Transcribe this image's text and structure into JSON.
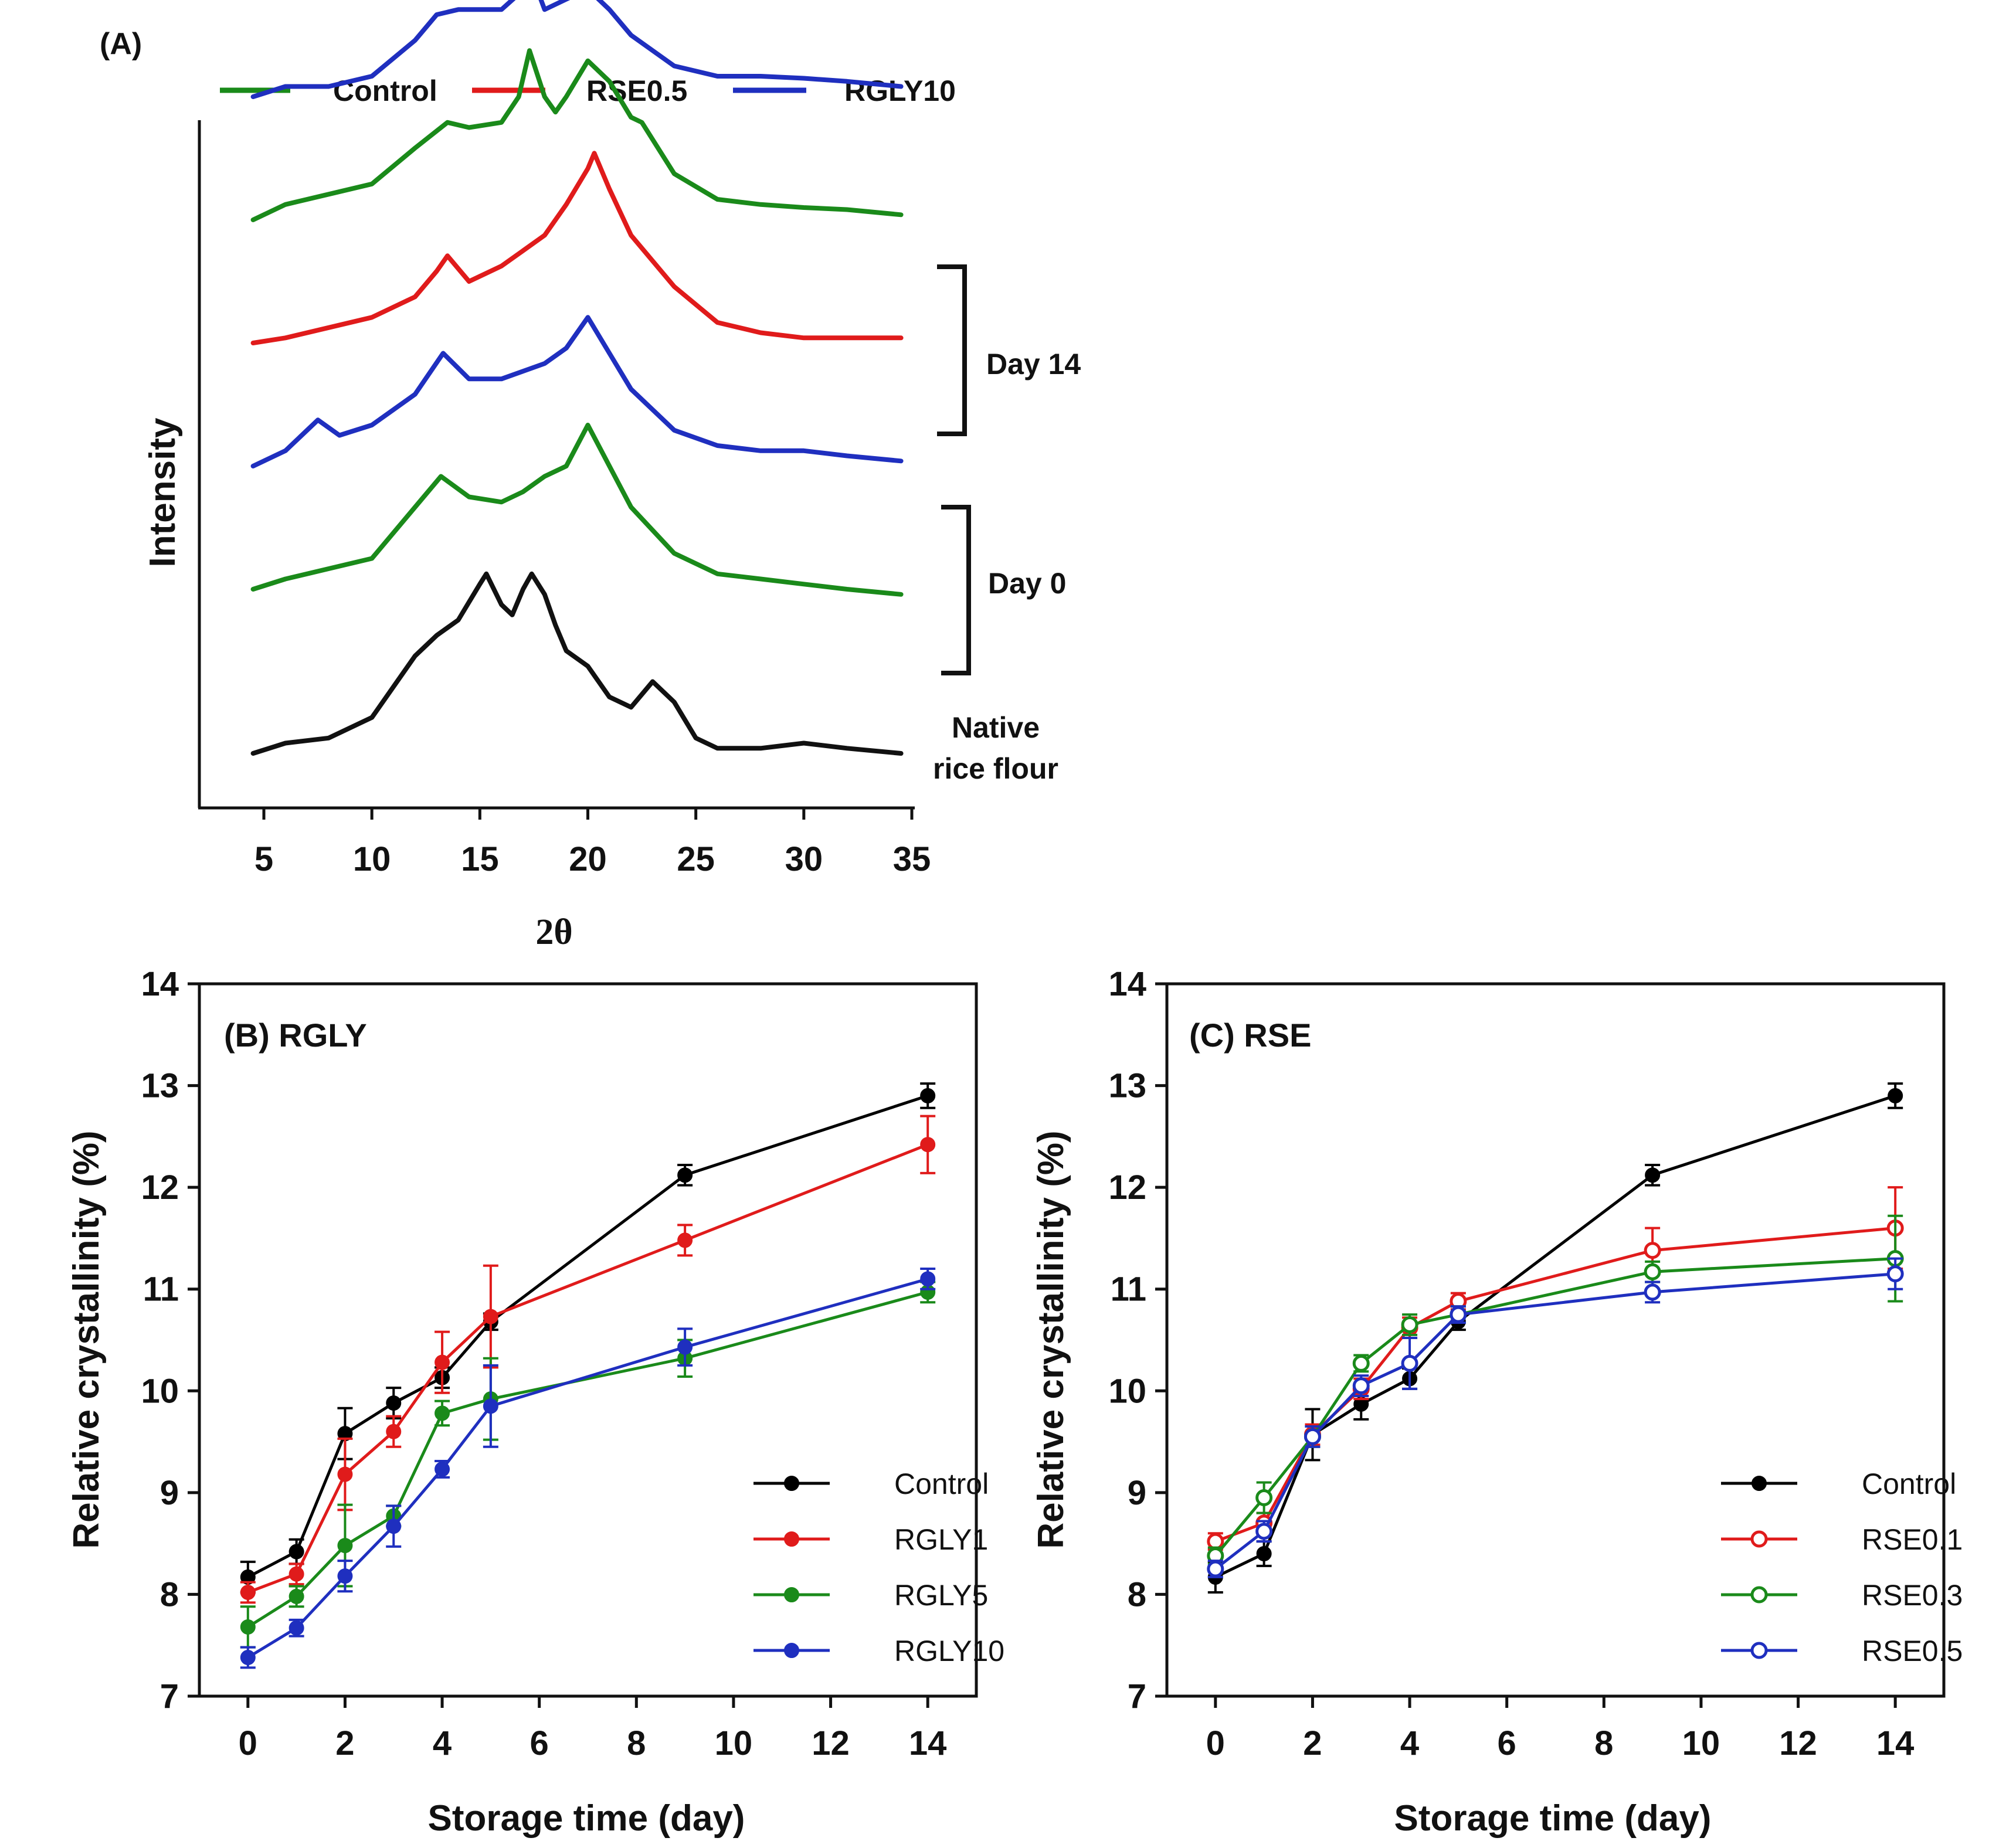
{
  "chart_data": [
    {
      "panel": "A",
      "type": "line",
      "panel_label": "(A)",
      "xlabel": "2θ",
      "ylabel": "Intensity",
      "xlim": [
        5,
        35
      ],
      "xticks": [
        5,
        10,
        15,
        20,
        25,
        30,
        35
      ],
      "legend": [
        {
          "name": "Control",
          "color": "#1a8a1a"
        },
        {
          "name": "RSE0.5",
          "color": "#e01b1b"
        },
        {
          "name": "RGLY10",
          "color": "#1f2fbf"
        }
      ],
      "groups": [
        {
          "label": "Day 14",
          "members": [
            "RSE0.5",
            "RGLY10",
            "Control"
          ]
        },
        {
          "label": "Day 0",
          "members": [
            "RSE0.5",
            "RGLY10",
            "Control"
          ]
        }
      ],
      "native_label_line1": "Native",
      "native_label_line2": "rice flour",
      "traces": [
        {
          "name": "RSE0.5",
          "group": "Day 14",
          "color": "#e01b1b",
          "offset": 6.0,
          "x": [
            4.5,
            6,
            8,
            10,
            12,
            13,
            14,
            15,
            16,
            17,
            18,
            19,
            20,
            21,
            22,
            24,
            26,
            28,
            30,
            32,
            34.5
          ],
          "y": [
            0.0,
            0.1,
            0.1,
            0.35,
            0.95,
            1.2,
            1.35,
            1.32,
            1.2,
            1.3,
            1.05,
            0.95,
            1.05,
            0.8,
            0.55,
            0.15,
            0.0,
            0.05,
            0.1,
            0.05,
            -0.1
          ]
        },
        {
          "name": "RGLY10",
          "group": "Day 14",
          "color": "#1f2fbf",
          "offset": 4.8,
          "x": [
            4.5,
            6,
            8,
            10,
            12,
            13,
            14,
            15,
            16,
            16.8,
            17.2,
            18,
            19,
            20,
            21,
            22,
            24,
            26,
            28,
            30,
            32,
            34.5
          ],
          "y": [
            0.0,
            0.1,
            0.1,
            0.2,
            0.55,
            0.8,
            0.85,
            0.85,
            0.85,
            1.0,
            1.3,
            0.85,
            0.95,
            1.05,
            0.85,
            0.6,
            0.3,
            0.2,
            0.2,
            0.18,
            0.15,
            0.1
          ]
        },
        {
          "name": "Control",
          "group": "Day 14",
          "color": "#1a8a1a",
          "offset": 3.6,
          "x": [
            4.5,
            6,
            8,
            10,
            12,
            13.5,
            14.5,
            16,
            16.8,
            17.3,
            18,
            18.5,
            19,
            20,
            21,
            22,
            22.5,
            24,
            26,
            28,
            30,
            32,
            34.5
          ],
          "y": [
            0.0,
            0.15,
            0.25,
            0.35,
            0.7,
            0.95,
            0.9,
            0.95,
            1.2,
            1.65,
            1.2,
            1.05,
            1.2,
            1.55,
            1.35,
            1.0,
            0.95,
            0.45,
            0.2,
            0.15,
            0.12,
            0.1,
            0.05
          ]
        },
        {
          "name": "RSE0.5",
          "group": "Day 0",
          "color": "#e01b1b",
          "offset": 2.4,
          "x": [
            4.5,
            6,
            8,
            10,
            12,
            13,
            13.5,
            14.5,
            16,
            18,
            19,
            20,
            20.3,
            21,
            22,
            24,
            26,
            28,
            30,
            32,
            34.5
          ],
          "y": [
            0.0,
            0.05,
            0.15,
            0.25,
            0.45,
            0.7,
            0.85,
            0.6,
            0.75,
            1.05,
            1.35,
            1.7,
            1.85,
            1.5,
            1.05,
            0.55,
            0.2,
            0.1,
            0.05,
            0.05,
            0.05
          ]
        },
        {
          "name": "RGLY10",
          "group": "Day 0",
          "color": "#1f2fbf",
          "offset": 1.2,
          "x": [
            4.5,
            6,
            7.5,
            8.5,
            10,
            12,
            13.3,
            14.5,
            16,
            18,
            19,
            20,
            21,
            22,
            24,
            26,
            28,
            30,
            32,
            34.5
          ],
          "y": [
            0.0,
            0.15,
            0.45,
            0.3,
            0.4,
            0.7,
            1.1,
            0.85,
            0.85,
            1.0,
            1.15,
            1.45,
            1.1,
            0.75,
            0.35,
            0.2,
            0.15,
            0.15,
            0.1,
            0.05
          ]
        },
        {
          "name": "Control",
          "group": "Day 0",
          "color": "#1a8a1a",
          "offset": 0.0,
          "x": [
            4.5,
            6,
            8,
            10,
            12,
            13.2,
            14.5,
            16,
            17,
            18,
            19,
            20,
            21,
            22,
            24,
            26,
            28,
            30,
            32,
            34.5
          ],
          "y": [
            0.0,
            0.1,
            0.2,
            0.3,
            0.8,
            1.1,
            0.9,
            0.85,
            0.95,
            1.1,
            1.2,
            1.6,
            1.2,
            0.8,
            0.35,
            0.15,
            0.1,
            0.05,
            0.0,
            -0.05
          ]
        },
        {
          "name": "Native rice flour",
          "group": "Native",
          "color": "#111111",
          "offset": -1.6,
          "x": [
            4.5,
            6,
            8,
            10,
            11,
            12,
            13,
            14,
            15,
            15.3,
            16,
            16.5,
            17,
            17.4,
            18,
            18.5,
            19,
            20,
            21,
            22,
            23,
            24,
            25,
            26,
            28,
            30,
            32,
            34.5
          ],
          "y": [
            0.0,
            0.1,
            0.15,
            0.35,
            0.65,
            0.95,
            1.15,
            1.3,
            1.65,
            1.75,
            1.45,
            1.35,
            1.6,
            1.75,
            1.55,
            1.25,
            1.0,
            0.85,
            0.55,
            0.45,
            0.7,
            0.5,
            0.15,
            0.05,
            0.05,
            0.1,
            0.05,
            0.0
          ]
        }
      ]
    },
    {
      "panel": "B",
      "type": "line",
      "title": "(B) RGLY",
      "xlabel": "Storage time (day)",
      "ylabel": "Relative crystallinity (%)",
      "xlim": [
        -1,
        15
      ],
      "ylim": [
        7,
        14
      ],
      "xticks": [
        0,
        2,
        4,
        6,
        8,
        10,
        12,
        14
      ],
      "yticks": [
        7,
        8,
        9,
        10,
        11,
        12,
        13,
        14
      ],
      "legend_position": "bottom-right",
      "x": [
        0,
        1,
        2,
        3,
        4,
        5,
        9,
        14
      ],
      "series": [
        {
          "name": "Control",
          "color": "#000000",
          "marker": "filled",
          "values": [
            8.17,
            8.42,
            9.58,
            9.88,
            10.13,
            10.68,
            12.12,
            12.9
          ],
          "errors": [
            0.15,
            0.12,
            0.25,
            0.15,
            0.1,
            0.08,
            0.1,
            0.12
          ]
        },
        {
          "name": "RGLY1",
          "color": "#e01b1b",
          "marker": "filled",
          "values": [
            8.02,
            8.2,
            9.18,
            9.6,
            10.28,
            10.73,
            11.48,
            12.42
          ],
          "errors": [
            0.1,
            0.1,
            0.35,
            0.15,
            0.3,
            0.5,
            0.15,
            0.28
          ]
        },
        {
          "name": "RGLY5",
          "color": "#1a8a1a",
          "marker": "filled",
          "values": [
            7.68,
            7.98,
            8.48,
            8.77,
            9.78,
            9.92,
            10.32,
            10.97
          ],
          "errors": [
            0.2,
            0.1,
            0.4,
            0.1,
            0.12,
            0.4,
            0.18,
            0.1
          ]
        },
        {
          "name": "RGLY10",
          "color": "#1f2fbf",
          "marker": "filled",
          "values": [
            7.38,
            7.67,
            8.18,
            8.67,
            9.23,
            9.85,
            10.43,
            11.1
          ],
          "errors": [
            0.1,
            0.08,
            0.15,
            0.2,
            0.08,
            0.4,
            0.18,
            0.1
          ]
        }
      ]
    },
    {
      "panel": "C",
      "type": "line",
      "title": "(C) RSE",
      "xlabel": "Storage time (day)",
      "ylabel": "Relative crystallinity (%)",
      "xlim": [
        -1,
        15
      ],
      "ylim": [
        7,
        14
      ],
      "xticks": [
        0,
        2,
        4,
        6,
        8,
        10,
        12,
        14
      ],
      "yticks": [
        7,
        8,
        9,
        10,
        11,
        12,
        13,
        14
      ],
      "legend_position": "bottom-right",
      "x": [
        0,
        1,
        2,
        3,
        4,
        5,
        9,
        14
      ],
      "series": [
        {
          "name": "Control",
          "color": "#000000",
          "marker": "filled",
          "values": [
            8.17,
            8.4,
            9.57,
            9.87,
            10.12,
            10.68,
            12.12,
            12.9
          ],
          "errors": [
            0.15,
            0.12,
            0.25,
            0.15,
            0.1,
            0.08,
            0.1,
            0.12
          ]
        },
        {
          "name": "RSE0.1",
          "color": "#e01b1b",
          "marker": "open",
          "values": [
            8.52,
            8.7,
            9.57,
            10.02,
            10.62,
            10.88,
            11.38,
            11.6
          ],
          "errors": [
            0.08,
            0.1,
            0.1,
            0.1,
            0.1,
            0.08,
            0.22,
            0.4
          ]
        },
        {
          "name": "RSE0.3",
          "color": "#1a8a1a",
          "marker": "open",
          "values": [
            8.38,
            8.95,
            9.55,
            10.27,
            10.65,
            10.75,
            11.17,
            11.3
          ],
          "errors": [
            0.08,
            0.15,
            0.1,
            0.08,
            0.1,
            0.08,
            0.1,
            0.42
          ]
        },
        {
          "name": "RSE0.5",
          "color": "#1f2fbf",
          "marker": "open",
          "values": [
            8.25,
            8.62,
            9.55,
            10.05,
            10.27,
            10.75,
            10.97,
            11.15
          ],
          "errors": [
            0.08,
            0.1,
            0.1,
            0.1,
            0.25,
            0.08,
            0.1,
            0.15
          ]
        }
      ]
    }
  ]
}
